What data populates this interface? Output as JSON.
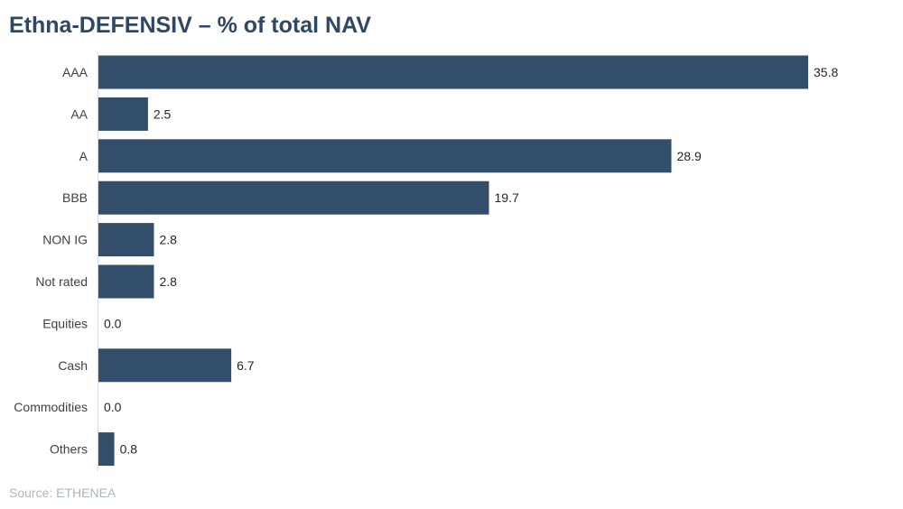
{
  "chart_data": {
    "type": "bar",
    "orientation": "horizontal",
    "title": "Ethna-DEFENSIV – % of total NAV",
    "xlabel": "",
    "ylabel": "",
    "categories": [
      "AAA",
      "AA",
      "A",
      "BBB",
      "NON IG",
      "Not rated",
      "Equities",
      "Cash",
      "Commodities",
      "Others"
    ],
    "values": [
      35.8,
      2.5,
      28.9,
      19.7,
      2.8,
      2.8,
      0.0,
      6.7,
      0.0,
      0.8
    ],
    "value_labels": [
      "35.8",
      "2.5",
      "28.9",
      "19.7",
      "2.8",
      "2.8",
      "0.0",
      "6.7",
      "0.0",
      "0.8"
    ],
    "xlim": [
      0,
      35.8
    ],
    "grid": false,
    "legend": "none",
    "bar_color": "#334e6b"
  },
  "source": "Source: ETHENEA"
}
